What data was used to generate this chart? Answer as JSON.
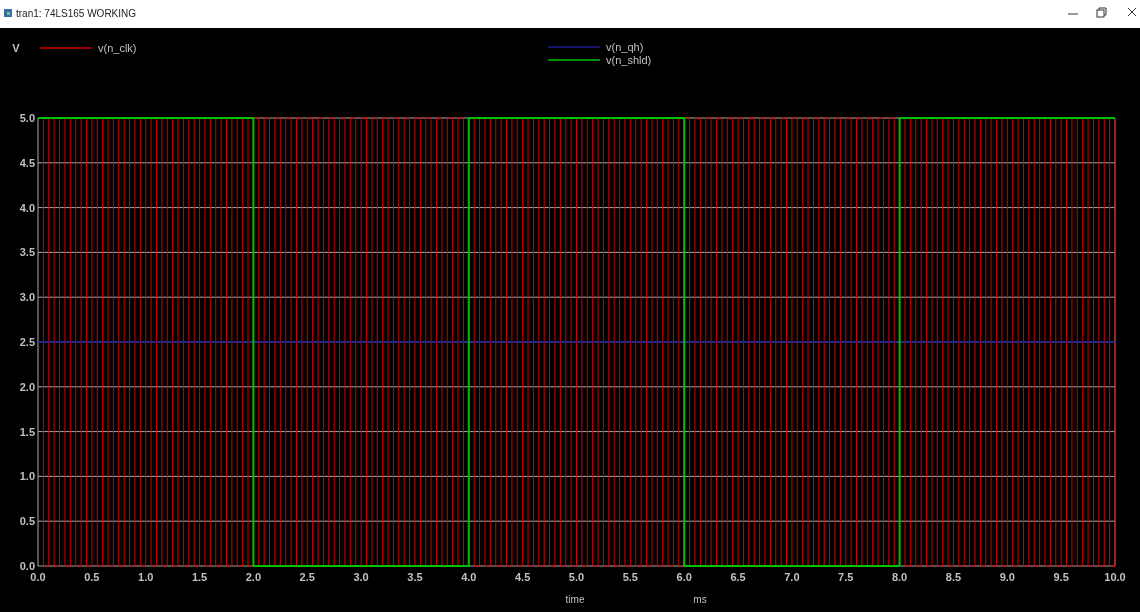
{
  "chart_data": {
    "type": "line",
    "title": "tran1: 74LS165 WORKING",
    "xlabel": "time",
    "annotations": [
      "V",
      "ms"
    ],
    "xlim": [
      0,
      10
    ],
    "xticks": [
      {
        "value": 0,
        "label": "0.0"
      },
      {
        "value": 0.5,
        "label": "0.5"
      },
      {
        "value": 1,
        "label": "1.0"
      },
      {
        "value": 1.5,
        "label": "1.5"
      },
      {
        "value": 2,
        "label": "2.0"
      },
      {
        "value": 2.5,
        "label": "2.5"
      },
      {
        "value": 3,
        "label": "3.0"
      },
      {
        "value": 3.5,
        "label": "3.5"
      },
      {
        "value": 4,
        "label": "4.0"
      },
      {
        "value": 4.5,
        "label": "4.5"
      },
      {
        "value": 5,
        "label": "5.0"
      },
      {
        "value": 5.5,
        "label": "5.5"
      },
      {
        "value": 6,
        "label": "6.0"
      },
      {
        "value": 6.5,
        "label": "6.5"
      },
      {
        "value": 7,
        "label": "7.0"
      },
      {
        "value": 7.5,
        "label": "7.5"
      },
      {
        "value": 8,
        "label": "8.0"
      },
      {
        "value": 8.5,
        "label": "8.5"
      },
      {
        "value": 9,
        "label": "9.0"
      },
      {
        "value": 9.5,
        "label": "9.5"
      },
      {
        "value": 10,
        "label": "10.0"
      }
    ],
    "ylim": [
      0,
      5
    ],
    "yticks": [
      {
        "value": 0,
        "label": "0.0"
      },
      {
        "value": 0.5,
        "label": "0.5"
      },
      {
        "value": 1,
        "label": "1.0"
      },
      {
        "value": 1.5,
        "label": "1.5"
      },
      {
        "value": 2,
        "label": "2.0"
      },
      {
        "value": 2.5,
        "label": "2.5"
      },
      {
        "value": 3,
        "label": "3.0"
      },
      {
        "value": 3.5,
        "label": "3.5"
      },
      {
        "value": 4,
        "label": "4.0"
      },
      {
        "value": 4.5,
        "label": "4.5"
      },
      {
        "value": 5,
        "label": "5.0"
      }
    ],
    "grid": "y",
    "legend": "top",
    "series": [
      {
        "name": "v(n_clk)",
        "color": "#d00000",
        "type": "step",
        "x": [
          0,
          0.05,
          0.1,
          0.15,
          0.2,
          0.25,
          0.3,
          0.35,
          0.4,
          0.45,
          0.5,
          0.55,
          0.6,
          0.65,
          0.7,
          0.75,
          0.8,
          0.85,
          0.9,
          0.95,
          1,
          1.05,
          1.1,
          1.15,
          1.2,
          1.25,
          1.3,
          1.35,
          1.4,
          1.45,
          1.5,
          1.55,
          1.6,
          1.65,
          1.7,
          1.75,
          1.8,
          1.85,
          1.9,
          1.95,
          2,
          2.05,
          2.1,
          2.15,
          2.2,
          2.25,
          2.3,
          2.35,
          2.4,
          2.45,
          2.5,
          2.55,
          2.6,
          2.65,
          2.7,
          2.75,
          2.8,
          2.85,
          2.9,
          2.95,
          3,
          3.05,
          3.1,
          3.15,
          3.2,
          3.25,
          3.3,
          3.35,
          3.4,
          3.45,
          3.5,
          3.55,
          3.6,
          3.65,
          3.7,
          3.75,
          3.8,
          3.85,
          3.9,
          3.95,
          4,
          4.05,
          4.1,
          4.15,
          4.2,
          4.25,
          4.3,
          4.35,
          4.4,
          4.45,
          4.5,
          4.55,
          4.6,
          4.65,
          4.7,
          4.75,
          4.8,
          4.85,
          4.9,
          4.95,
          5,
          5.05,
          5.1,
          5.15,
          5.2,
          5.25,
          5.3,
          5.35,
          5.4,
          5.45,
          5.5,
          5.55,
          5.6,
          5.65,
          5.7,
          5.75,
          5.8,
          5.85,
          5.9,
          5.95,
          6,
          6.05,
          6.1,
          6.15,
          6.2,
          6.25,
          6.3,
          6.35,
          6.4,
          6.45,
          6.5,
          6.55,
          6.6,
          6.65,
          6.7,
          6.75,
          6.8,
          6.85,
          6.9,
          6.95,
          7,
          7.05,
          7.1,
          7.15,
          7.2,
          7.25,
          7.3,
          7.35,
          7.4,
          7.45,
          7.5,
          7.55,
          7.6,
          7.65,
          7.7,
          7.75,
          7.8,
          7.85,
          7.9,
          7.95,
          8,
          8.05,
          8.1,
          8.15,
          8.2,
          8.25,
          8.3,
          8.35,
          8.4,
          8.45,
          8.5,
          8.55,
          8.6,
          8.65,
          8.7,
          8.75,
          8.8,
          8.85,
          8.9,
          8.95,
          9,
          9.05,
          9.1,
          9.15,
          9.2,
          9.25,
          9.3,
          9.35,
          9.4,
          9.45,
          9.5,
          9.55,
          9.6,
          9.65,
          9.7,
          9.75,
          9.8,
          9.85,
          9.9,
          9.95,
          10
        ],
        "values": [
          5,
          0,
          5,
          0,
          5,
          0,
          5,
          0,
          5,
          0,
          5,
          0,
          5,
          0,
          5,
          0,
          5,
          0,
          5,
          0,
          5,
          0,
          5,
          0,
          5,
          0,
          5,
          0,
          5,
          0,
          5,
          0,
          5,
          0,
          5,
          0,
          5,
          0,
          5,
          0,
          5,
          0,
          5,
          0,
          5,
          0,
          5,
          0,
          5,
          0,
          5,
          0,
          5,
          0,
          5,
          0,
          5,
          0,
          5,
          0,
          5,
          0,
          5,
          0,
          5,
          0,
          5,
          0,
          5,
          0,
          5,
          0,
          5,
          0,
          5,
          0,
          5,
          0,
          5,
          0,
          5,
          0,
          5,
          0,
          5,
          0,
          5,
          0,
          5,
          0,
          5,
          0,
          5,
          0,
          5,
          0,
          5,
          0,
          5,
          0,
          5,
          0,
          5,
          0,
          5,
          0,
          5,
          0,
          5,
          0,
          5,
          0,
          5,
          0,
          5,
          0,
          5,
          0,
          5,
          0,
          5,
          0,
          5,
          0,
          5,
          0,
          5,
          0,
          5,
          0,
          5,
          0,
          5,
          0,
          5,
          0,
          5,
          0,
          5,
          0,
          5,
          0,
          5,
          0,
          5,
          0,
          5,
          0,
          5,
          0,
          5,
          0,
          5,
          0,
          5,
          0,
          5,
          0,
          5,
          0,
          5,
          0,
          5,
          0,
          5,
          0,
          5,
          0,
          5,
          0,
          5,
          0,
          5,
          0,
          5,
          0,
          5,
          0,
          5,
          0,
          5,
          0,
          5,
          0,
          5,
          0,
          5,
          0,
          5,
          0,
          5,
          0,
          5,
          0,
          5,
          0,
          5,
          0,
          5,
          0,
          5
        ]
      },
      {
        "name": "v(n_qh)",
        "color": "#1a1a8c",
        "type": "line",
        "x": [
          0,
          10
        ],
        "values": [
          2.5,
          2.5
        ]
      },
      {
        "name": "v(n_shld)",
        "color": "#00c000",
        "type": "step",
        "x": [
          0,
          2,
          4,
          6,
          8,
          10
        ],
        "values": [
          5,
          0,
          5,
          0,
          5,
          5
        ]
      }
    ]
  }
}
